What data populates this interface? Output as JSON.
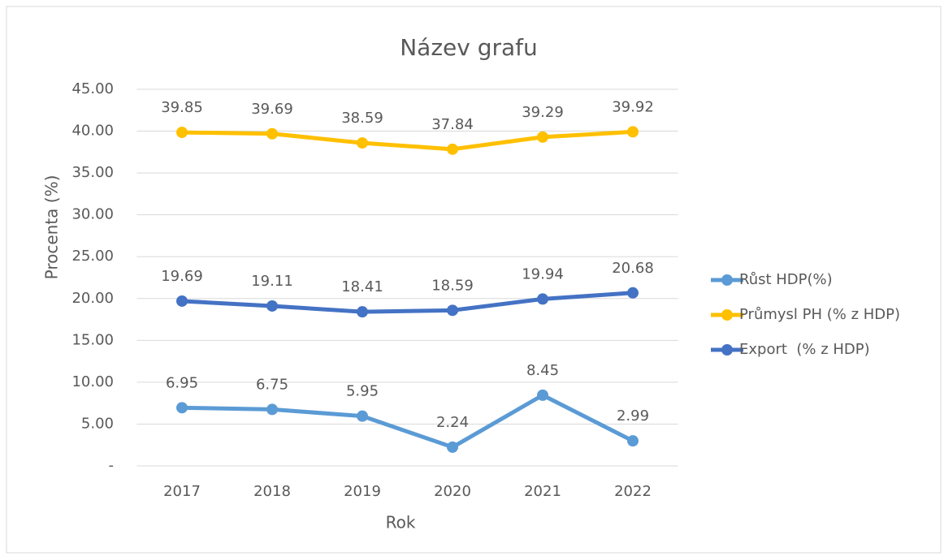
{
  "chart_data": {
    "type": "line",
    "title": "Název grafu",
    "x_label": "Rok",
    "y_label": "Procenta (%)",
    "categories": [
      "2017",
      "2018",
      "2019",
      "2020",
      "2021",
      "2022"
    ],
    "series": [
      {
        "name": "Růst HDP(%)",
        "color": "#5b9bd5",
        "values": [
          6.95,
          6.75,
          5.95,
          2.24,
          8.45,
          2.99
        ]
      },
      {
        "name": "Průmysl PH (% z HDP)",
        "color": "#ffc000",
        "values": [
          39.85,
          39.69,
          38.59,
          37.84,
          39.29,
          39.92
        ]
      },
      {
        "name": "Export  (% z HDP)",
        "color": "#4472c4",
        "values": [
          19.69,
          19.11,
          18.41,
          18.59,
          19.94,
          20.68
        ]
      }
    ],
    "ylim": [
      0,
      45
    ],
    "yticks": [
      {
        "value": 0,
        "label": "-"
      },
      {
        "value": 5,
        "label": "5.00"
      },
      {
        "value": 10,
        "label": "10.00"
      },
      {
        "value": 15,
        "label": "15.00"
      },
      {
        "value": 20,
        "label": "20.00"
      },
      {
        "value": 25,
        "label": "25.00"
      },
      {
        "value": 30,
        "label": "30.00"
      },
      {
        "value": 35,
        "label": "35.00"
      },
      {
        "value": 40,
        "label": "40.00"
      },
      {
        "value": 45,
        "label": "45.00"
      }
    ],
    "grid": true,
    "legend": "right"
  }
}
